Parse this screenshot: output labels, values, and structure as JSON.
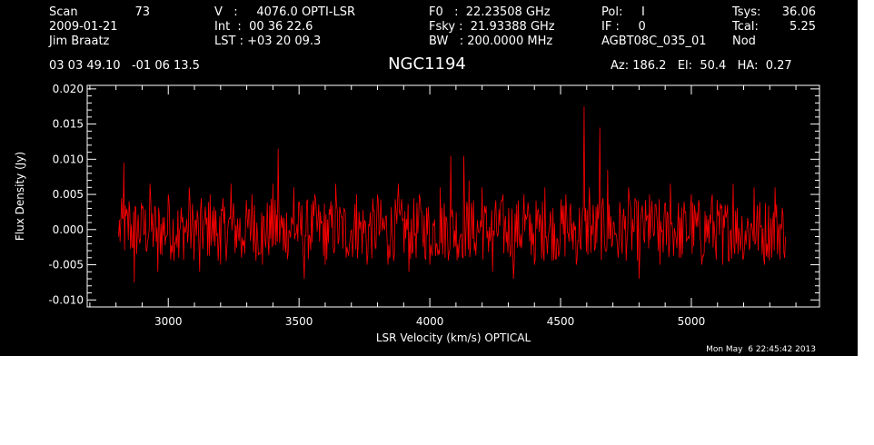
{
  "header": {
    "scan_label": "Scan",
    "scan_value": "73",
    "date": "2009-01-21",
    "observer": "Jim Braatz",
    "velocity": "V   :     4076.0 OPTI-LSR",
    "integration": "Int  :  00 36 22.6",
    "lst": "LST : +03 20 09.3",
    "f0": "F0   :  22.23508 GHz",
    "fsky": "Fsky :  21.93388 GHz",
    "bw": "BW   : 200.0000 MHz",
    "pol": "Pol:     I",
    "if": "IF :     0",
    "project": "AGBT08C_035_01",
    "tsys_label": "Tsys:",
    "tsys_value": "36.06",
    "tcal_label": "Tcal:",
    "tcal_value": "5.25",
    "mode": "Nod",
    "coords": "03 03 49.10   -01 06 13.5",
    "pointing": "Az: 186.2   El:  50.4   HA:  0.27"
  },
  "source": "NGC1194",
  "timestamp": "Mon May  6 22:45:42 2013",
  "colors": {
    "background": "#000000",
    "axes": "#ffffff",
    "trace": "#ff0000"
  },
  "chart_data": {
    "type": "line",
    "title": "NGC1194",
    "xlabel": "LSR Velocity (km/s) OPTICAL",
    "ylabel": "Flux Density (Jy)",
    "xlim": [
      2690,
      5490
    ],
    "ylim": [
      -0.011,
      0.0205
    ],
    "xticks": [
      3000,
      3500,
      4000,
      4500,
      5000
    ],
    "xtick_labels": [
      "3000",
      "3500",
      "4000",
      "4500",
      "5000"
    ],
    "yticks": [
      -0.01,
      -0.005,
      0.0,
      0.005,
      0.01,
      0.015,
      0.02
    ],
    "ytick_labels": [
      "-0.010",
      "-0.005",
      "0.000",
      "0.005",
      "0.010",
      "0.015",
      "0.020"
    ],
    "grid": false,
    "series": [
      {
        "color": "#ff0000",
        "x": [
          2810,
          2830,
          2850,
          2870,
          2900,
          2930,
          2960,
          3000,
          3040,
          3080,
          3120,
          3160,
          3200,
          3240,
          3280,
          3320,
          3360,
          3400,
          3420,
          3440,
          3480,
          3520,
          3560,
          3600,
          3640,
          3680,
          3720,
          3760,
          3800,
          3840,
          3880,
          3920,
          3960,
          4000,
          4040,
          4080,
          4110,
          4130,
          4150,
          4170,
          4200,
          4240,
          4280,
          4320,
          4360,
          4400,
          4440,
          4480,
          4520,
          4560,
          4590,
          4610,
          4630,
          4650,
          4680,
          4720,
          4760,
          4800,
          4840,
          4880,
          4920,
          4960,
          5000,
          5040,
          5080,
          5120,
          5160,
          5200,
          5240,
          5280,
          5320,
          5360
        ],
        "y": [
          -0.001,
          0.0095,
          0.004,
          -0.0075,
          0.003,
          0.0065,
          -0.006,
          0.005,
          -0.004,
          0.006,
          -0.006,
          0.005,
          -0.005,
          0.0065,
          -0.004,
          0.005,
          -0.005,
          0.0065,
          0.0115,
          -0.003,
          0.006,
          -0.007,
          0.005,
          -0.005,
          0.0065,
          -0.004,
          0.005,
          -0.005,
          0.005,
          -0.005,
          0.0065,
          -0.006,
          0.005,
          -0.005,
          0.006,
          0.0105,
          -0.004,
          0.0105,
          0.007,
          -0.003,
          0.006,
          -0.006,
          0.005,
          -0.007,
          0.005,
          -0.005,
          0.006,
          -0.004,
          0.005,
          -0.005,
          0.0175,
          0.006,
          -0.003,
          0.0145,
          0.0085,
          -0.004,
          0.006,
          -0.007,
          0.005,
          -0.005,
          0.0065,
          -0.004,
          0.005,
          -0.005,
          0.005,
          -0.005,
          0.0065,
          -0.004,
          0.006,
          -0.005,
          0.006,
          -0.001
        ]
      }
    ]
  }
}
